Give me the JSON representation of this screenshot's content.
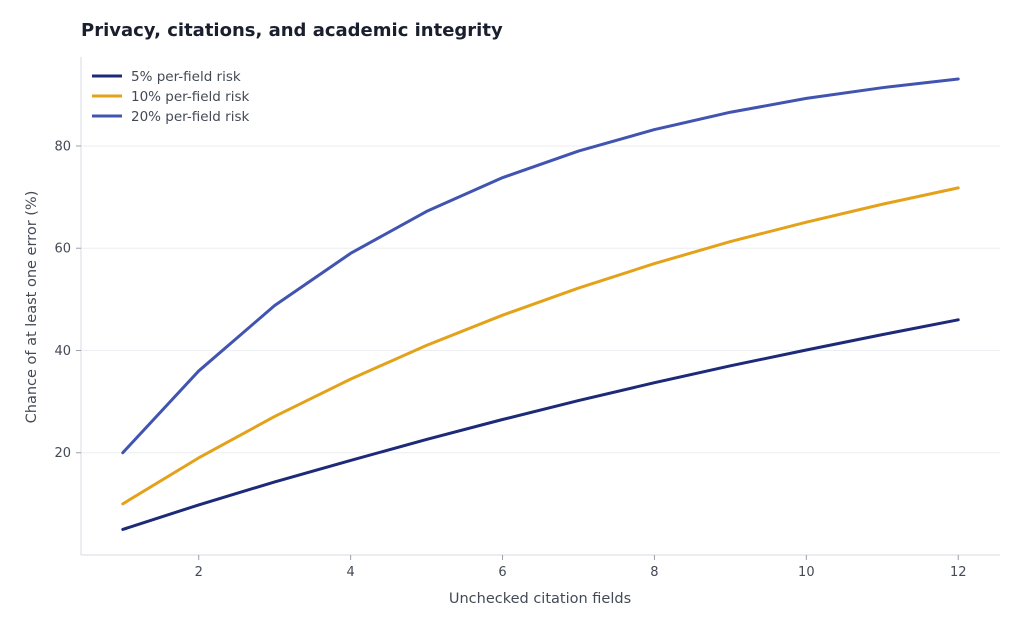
{
  "chart_data": {
    "type": "line",
    "title": "Privacy, citations, and academic integrity",
    "xlabel": "Unchecked citation fields",
    "ylabel": "Chance of at least one error (%)",
    "x": [
      1,
      2,
      3,
      4,
      5,
      6,
      7,
      8,
      9,
      10,
      11,
      12
    ],
    "xlim": [
      0.45,
      12.55
    ],
    "ylim": [
      0,
      97.4
    ],
    "xticks": [
      2,
      4,
      6,
      8,
      10,
      12
    ],
    "yticks": [
      20,
      40,
      60,
      80
    ],
    "grid": "horizontal",
    "legend_position": "top-left",
    "series": [
      {
        "name": "5% per-field risk",
        "color": "#1c2a78",
        "values": [
          5.0,
          9.8,
          14.3,
          18.5,
          22.6,
          26.5,
          30.2,
          33.7,
          37.0,
          40.1,
          43.1,
          46.0
        ]
      },
      {
        "name": "10% per-field risk",
        "color": "#e3a21a",
        "values": [
          10.0,
          19.0,
          27.1,
          34.4,
          41.0,
          46.9,
          52.2,
          57.0,
          61.3,
          65.1,
          68.6,
          71.8
        ]
      },
      {
        "name": "20% per-field risk",
        "color": "#4154b0",
        "values": [
          20.0,
          36.0,
          48.8,
          59.0,
          67.2,
          73.8,
          79.0,
          83.2,
          86.6,
          89.3,
          91.4,
          93.1
        ]
      }
    ]
  }
}
